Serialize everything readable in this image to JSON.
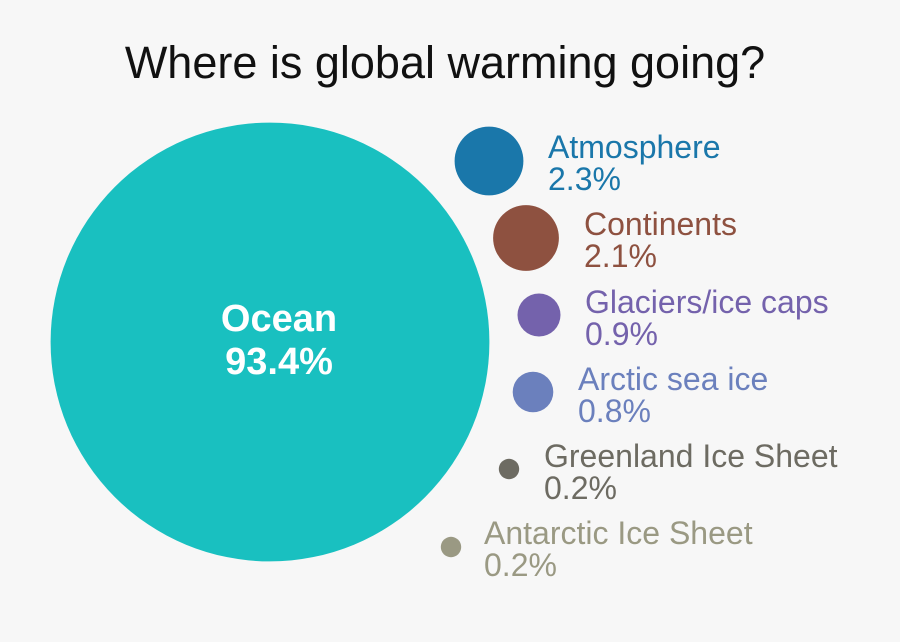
{
  "chart_data": {
    "type": "bubble",
    "title": "Where is global warming going?",
    "unit": "%",
    "series": [
      {
        "name": "Ocean",
        "value": 93.4,
        "display": "93.4%",
        "color": "#19c0c0"
      },
      {
        "name": "Atmosphere",
        "value": 2.3,
        "display": "2.3%",
        "color": "#1a77aa"
      },
      {
        "name": "Continents",
        "value": 2.1,
        "display": "2.1%",
        "color": "#8e5140"
      },
      {
        "name": "Glaciers/ice caps",
        "value": 0.9,
        "display": "0.9%",
        "color": "#7462ac"
      },
      {
        "name": "Arctic sea ice",
        "value": 0.8,
        "display": "0.8%",
        "color": "#6b80bd"
      },
      {
        "name": "Greenland Ice Sheet",
        "value": 0.2,
        "display": "0.2%",
        "color": "#6d6b62"
      },
      {
        "name": "Antarctic Ice Sheet",
        "value": 0.2,
        "display": "0.2%",
        "color": "#9a9983"
      }
    ]
  }
}
